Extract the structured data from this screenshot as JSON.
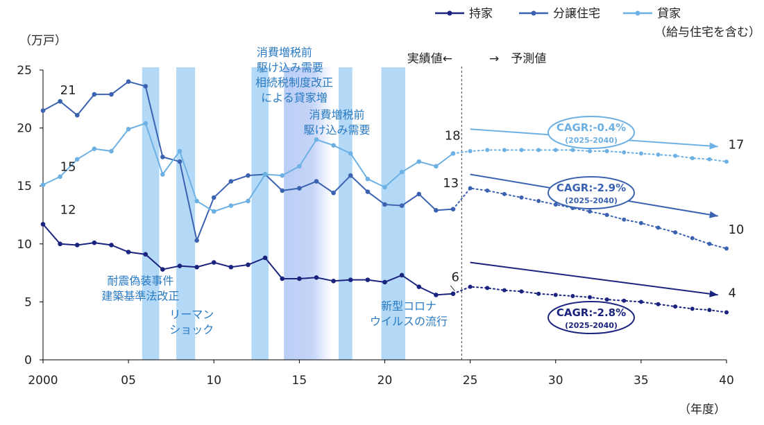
{
  "chart_data": {
    "type": "line",
    "unit_label": "（万戸）",
    "x_unit_label": "（年度）",
    "x_tick_labels": [
      "2000",
      "05",
      "10",
      "15",
      "20",
      "25",
      "30",
      "35",
      "40"
    ],
    "x_ticks": [
      2000,
      2005,
      2010,
      2015,
      2020,
      2025,
      2030,
      2035,
      2040
    ],
    "xlim": [
      2000,
      2040
    ],
    "ylim": [
      0,
      25
    ],
    "y_ticks": [
      0,
      5,
      10,
      15,
      20,
      25
    ],
    "grid": false,
    "legend_position": "top-right",
    "legend": [
      {
        "label": "持家",
        "color": "#1a237e"
      },
      {
        "label": "分譲住宅",
        "color": "#3a62b0"
      },
      {
        "label": "貸家",
        "sublabel": "（給与住宅を含む）",
        "color": "#6db0e3"
      }
    ],
    "divider_x": 2024.5,
    "divider_labels": {
      "actual": "実績値←",
      "forecast": "→　予測値"
    },
    "series": [
      {
        "name": "持家",
        "color": "#1a237e",
        "actual": {
          "x": [
            2000,
            2001,
            2002,
            2003,
            2004,
            2005,
            2006,
            2007,
            2008,
            2009,
            2010,
            2011,
            2012,
            2013,
            2014,
            2015,
            2016,
            2017,
            2018,
            2019,
            2020,
            2021,
            2022,
            2023,
            2024
          ],
          "y": [
            11.7,
            10.0,
            9.9,
            10.1,
            9.9,
            9.3,
            9.1,
            7.8,
            8.1,
            8.0,
            8.4,
            8.0,
            8.2,
            8.8,
            7.0,
            7.0,
            7.1,
            6.8,
            6.9,
            6.9,
            6.7,
            7.3,
            6.3,
            5.6,
            5.7
          ]
        },
        "forecast": {
          "x": [
            2024,
            2025,
            2026,
            2027,
            2028,
            2029,
            2030,
            2031,
            2032,
            2033,
            2034,
            2035,
            2036,
            2037,
            2038,
            2039,
            2040
          ],
          "y": [
            5.7,
            6.3,
            6.2,
            6.0,
            5.9,
            5.7,
            5.6,
            5.5,
            5.4,
            5.2,
            5.1,
            5.0,
            4.8,
            4.6,
            4.4,
            4.3,
            4.1
          ]
        },
        "trend": {
          "from": [
            2025,
            8.4
          ],
          "to": [
            2039.5,
            5.6
          ]
        },
        "cagr": {
          "text": "CAGR:-2.8%",
          "period": "(2025-2040)"
        }
      },
      {
        "name": "分譲住宅",
        "color": "#3a62b0",
        "actual": {
          "x": [
            2000,
            2001,
            2002,
            2003,
            2004,
            2005,
            2006,
            2007,
            2008,
            2009,
            2010,
            2011,
            2012,
            2013,
            2014,
            2015,
            2016,
            2017,
            2018,
            2019,
            2020,
            2021,
            2022,
            2023,
            2024
          ],
          "y": [
            21.5,
            22.3,
            21.1,
            22.9,
            22.9,
            24.0,
            23.6,
            17.5,
            17.1,
            10.3,
            14.0,
            15.4,
            15.9,
            16.0,
            14.6,
            14.8,
            15.4,
            14.4,
            15.9,
            14.5,
            13.4,
            13.3,
            14.3,
            12.9,
            13.0
          ]
        },
        "forecast": {
          "x": [
            2024,
            2025,
            2026,
            2027,
            2028,
            2029,
            2030,
            2031,
            2032,
            2033,
            2034,
            2035,
            2036,
            2037,
            2038,
            2039,
            2040
          ],
          "y": [
            13.0,
            14.8,
            14.6,
            14.3,
            14.0,
            13.7,
            13.4,
            13.1,
            12.8,
            12.5,
            12.1,
            11.8,
            11.4,
            11.0,
            10.5,
            10.0,
            9.6
          ]
        },
        "trend": {
          "from": [
            2025,
            16.0
          ],
          "to": [
            2039.5,
            12.4
          ]
        },
        "cagr": {
          "text": "CAGR:-2.9%",
          "period": "(2025-2040)"
        }
      },
      {
        "name": "貸家",
        "color": "#6db0e3",
        "actual": {
          "x": [
            2000,
            2001,
            2002,
            2003,
            2004,
            2005,
            2006,
            2007,
            2008,
            2009,
            2010,
            2011,
            2012,
            2013,
            2014,
            2015,
            2016,
            2017,
            2018,
            2019,
            2020,
            2021,
            2022,
            2023,
            2024
          ],
          "y": [
            15.1,
            15.8,
            17.3,
            18.2,
            18.0,
            19.9,
            20.4,
            16.0,
            18.0,
            13.7,
            12.8,
            13.3,
            13.7,
            16.0,
            15.9,
            16.7,
            19.0,
            18.5,
            17.8,
            15.6,
            14.9,
            16.2,
            17.1,
            16.7,
            17.8
          ]
        },
        "forecast": {
          "x": [
            2024,
            2025,
            2026,
            2027,
            2028,
            2029,
            2030,
            2031,
            2032,
            2033,
            2034,
            2035,
            2036,
            2037,
            2038,
            2039,
            2040
          ],
          "y": [
            17.8,
            18.0,
            18.1,
            18.1,
            18.1,
            18.1,
            18.1,
            18.1,
            18.0,
            18.0,
            17.9,
            17.8,
            17.7,
            17.6,
            17.4,
            17.3,
            17.1
          ]
        },
        "trend": {
          "from": [
            2025,
            19.9
          ],
          "to": [
            2039.5,
            18.4
          ]
        },
        "cagr": {
          "text": "CAGR:-0.4%",
          "period": "(2025-2040)"
        }
      }
    ],
    "data_labels": [
      {
        "text": "21",
        "x": 2001,
        "y": 22.9
      },
      {
        "text": "15",
        "x": 2001,
        "y": 16.3
      },
      {
        "text": "12",
        "x": 2001,
        "y": 12.6
      },
      {
        "text": "18",
        "x": 2023.5,
        "y": 19.0
      },
      {
        "text": "13",
        "x": 2023.4,
        "y": 14.9
      },
      {
        "text": "6",
        "x": 2023.9,
        "y": 6.8
      },
      {
        "text": "17",
        "x": 2040.1,
        "y": 18.2
      },
      {
        "text": "10",
        "x": 2040.1,
        "y": 10.9
      },
      {
        "text": "4",
        "x": 2040.1,
        "y": 5.4
      }
    ],
    "event_bands": [
      {
        "from": 2005.8,
        "to": 2006.8
      },
      {
        "from": 2007.8,
        "to": 2008.9
      },
      {
        "from": 2012.2,
        "to": 2013.2
      },
      {
        "from": 2014.1,
        "to": 2016.9,
        "gradient": true
      },
      {
        "from": 2017.3,
        "to": 2018.1
      },
      {
        "from": 2019.8,
        "to": 2021.2
      }
    ],
    "annotations": [
      {
        "lines": [
          "耐震偽装事件",
          "建築基準法改正"
        ],
        "x": 2005.7,
        "y": 6.5,
        "anchor": "middle"
      },
      {
        "lines": [
          "リーマン",
          "ショック"
        ],
        "x": 2008.7,
        "y": 3.6,
        "anchor": "middle"
      },
      {
        "lines": [
          "消費増税前",
          "駆け込み需要"
        ],
        "x": 2012.5,
        "y": 26.2,
        "anchor": "start"
      },
      {
        "lines": [
          "相続税制度改正",
          "による貸家増"
        ],
        "x": 2014.7,
        "y": 23.6,
        "anchor": "middle"
      },
      {
        "lines": [
          "消費増税前",
          "駆け込み需要"
        ],
        "x": 2017.2,
        "y": 20.8,
        "anchor": "middle"
      },
      {
        "lines": [
          "新型コロナ",
          "ウイルスの流行"
        ],
        "x": 2021.4,
        "y": 4.3,
        "anchor": "middle"
      }
    ]
  }
}
